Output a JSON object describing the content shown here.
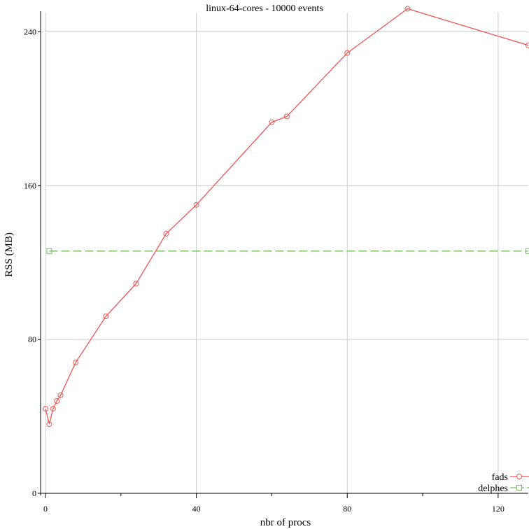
{
  "chart_data": {
    "type": "line",
    "title": "linux-64-cores - 10000 events",
    "xlabel": "nbr of procs",
    "ylabel": "RSS (MB)",
    "xlim": [
      0,
      128
    ],
    "ylim": [
      0,
      250
    ],
    "xticks": [
      0,
      40,
      80,
      120
    ],
    "xminor": [
      20,
      60,
      100
    ],
    "yticks": [
      0,
      80,
      160,
      240
    ],
    "grid": true,
    "legend_position": "bottom-right",
    "series": [
      {
        "name": "fads",
        "color": "#ee5555",
        "marker": "circle",
        "dash": "solid",
        "x": [
          0,
          1,
          2,
          3,
          4,
          8,
          16,
          24,
          32,
          40,
          60,
          64,
          80,
          96,
          128
        ],
        "y": [
          44,
          36,
          44,
          48,
          51,
          68,
          92,
          109,
          135,
          150,
          193,
          196,
          229,
          252,
          233
        ]
      },
      {
        "name": "delphes",
        "color": "#77bb66",
        "marker": "square",
        "dash": "dashed",
        "x": [
          1,
          128
        ],
        "y": [
          126,
          126
        ]
      }
    ]
  }
}
